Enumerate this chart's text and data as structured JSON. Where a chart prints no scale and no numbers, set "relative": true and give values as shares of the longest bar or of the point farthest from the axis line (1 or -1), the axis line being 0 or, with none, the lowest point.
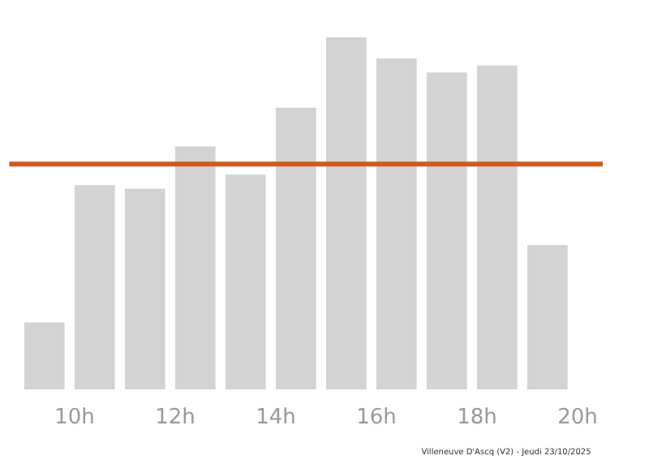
{
  "chart_data": {
    "type": "bar",
    "relative": true,
    "color": "#d3d3d3",
    "x": [
      9.4,
      10.4,
      11.4,
      12.4,
      13.4,
      14.4,
      15.4,
      16.4,
      17.4,
      18.4,
      19.4
    ],
    "values": [
      0.19,
      0.58,
      0.57,
      0.69,
      0.61,
      0.8,
      1,
      0.94,
      0.9,
      0.92,
      0.41
    ],
    "xlim": [
      8.7,
      20.5
    ],
    "xticks": [
      {
        "value": 10,
        "label": "10h"
      },
      {
        "value": 12,
        "label": "12h"
      },
      {
        "value": 14,
        "label": "14h"
      },
      {
        "value": 16,
        "label": "16h"
      },
      {
        "value": 18,
        "label": "18h"
      },
      {
        "value": 20,
        "label": "20h"
      }
    ],
    "ref_lines": [
      {
        "axis": "y",
        "value": 0.64,
        "color": "#d2591e"
      }
    ],
    "grid": false,
    "annotations": [
      "Villeneuve D'Ascq (V2) - Jeudi 23/10/2025"
    ]
  }
}
